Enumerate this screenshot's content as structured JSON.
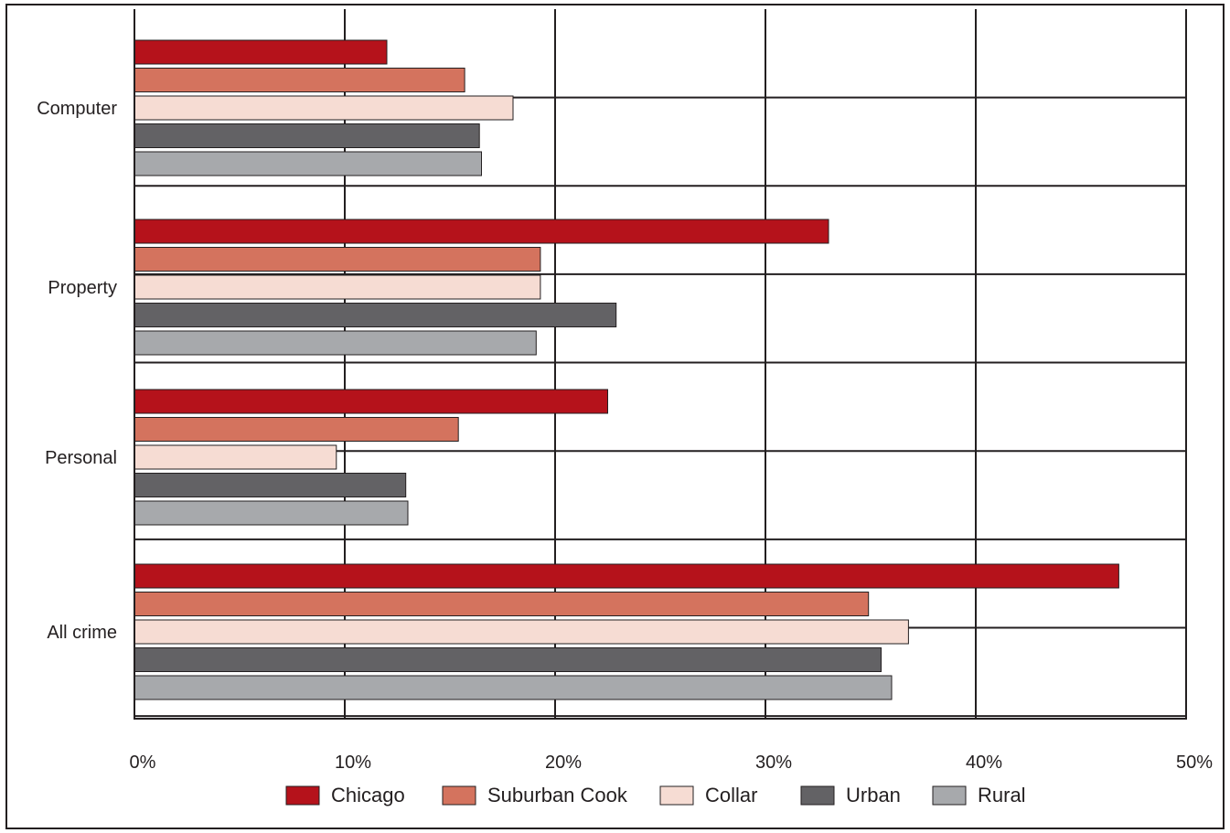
{
  "chart_data": {
    "type": "bar",
    "orientation": "horizontal",
    "categories": [
      "Computer",
      "Property",
      "Personal",
      "All crime"
    ],
    "series": [
      {
        "name": "Chicago",
        "color": "#b5121b",
        "values": [
          12.0,
          33.0,
          22.5,
          46.8
        ]
      },
      {
        "name": "Suburban Cook",
        "color": "#d4735e",
        "values": [
          15.7,
          19.3,
          15.4,
          34.9
        ]
      },
      {
        "name": "Collar",
        "color": "#f6dcd3",
        "values": [
          18.0,
          19.3,
          9.6,
          36.8
        ]
      },
      {
        "name": "Urban",
        "color": "#636265",
        "values": [
          16.4,
          22.9,
          12.9,
          35.5
        ]
      },
      {
        "name": "Rural",
        "color": "#a7a9ac",
        "values": [
          16.5,
          19.1,
          13.0,
          36.0
        ]
      }
    ],
    "xlim": [
      0,
      50
    ],
    "xticks": [
      "0%",
      "10%",
      "20%",
      "30%",
      "40%",
      "50%"
    ],
    "grid": true,
    "legend_position": "bottom"
  }
}
